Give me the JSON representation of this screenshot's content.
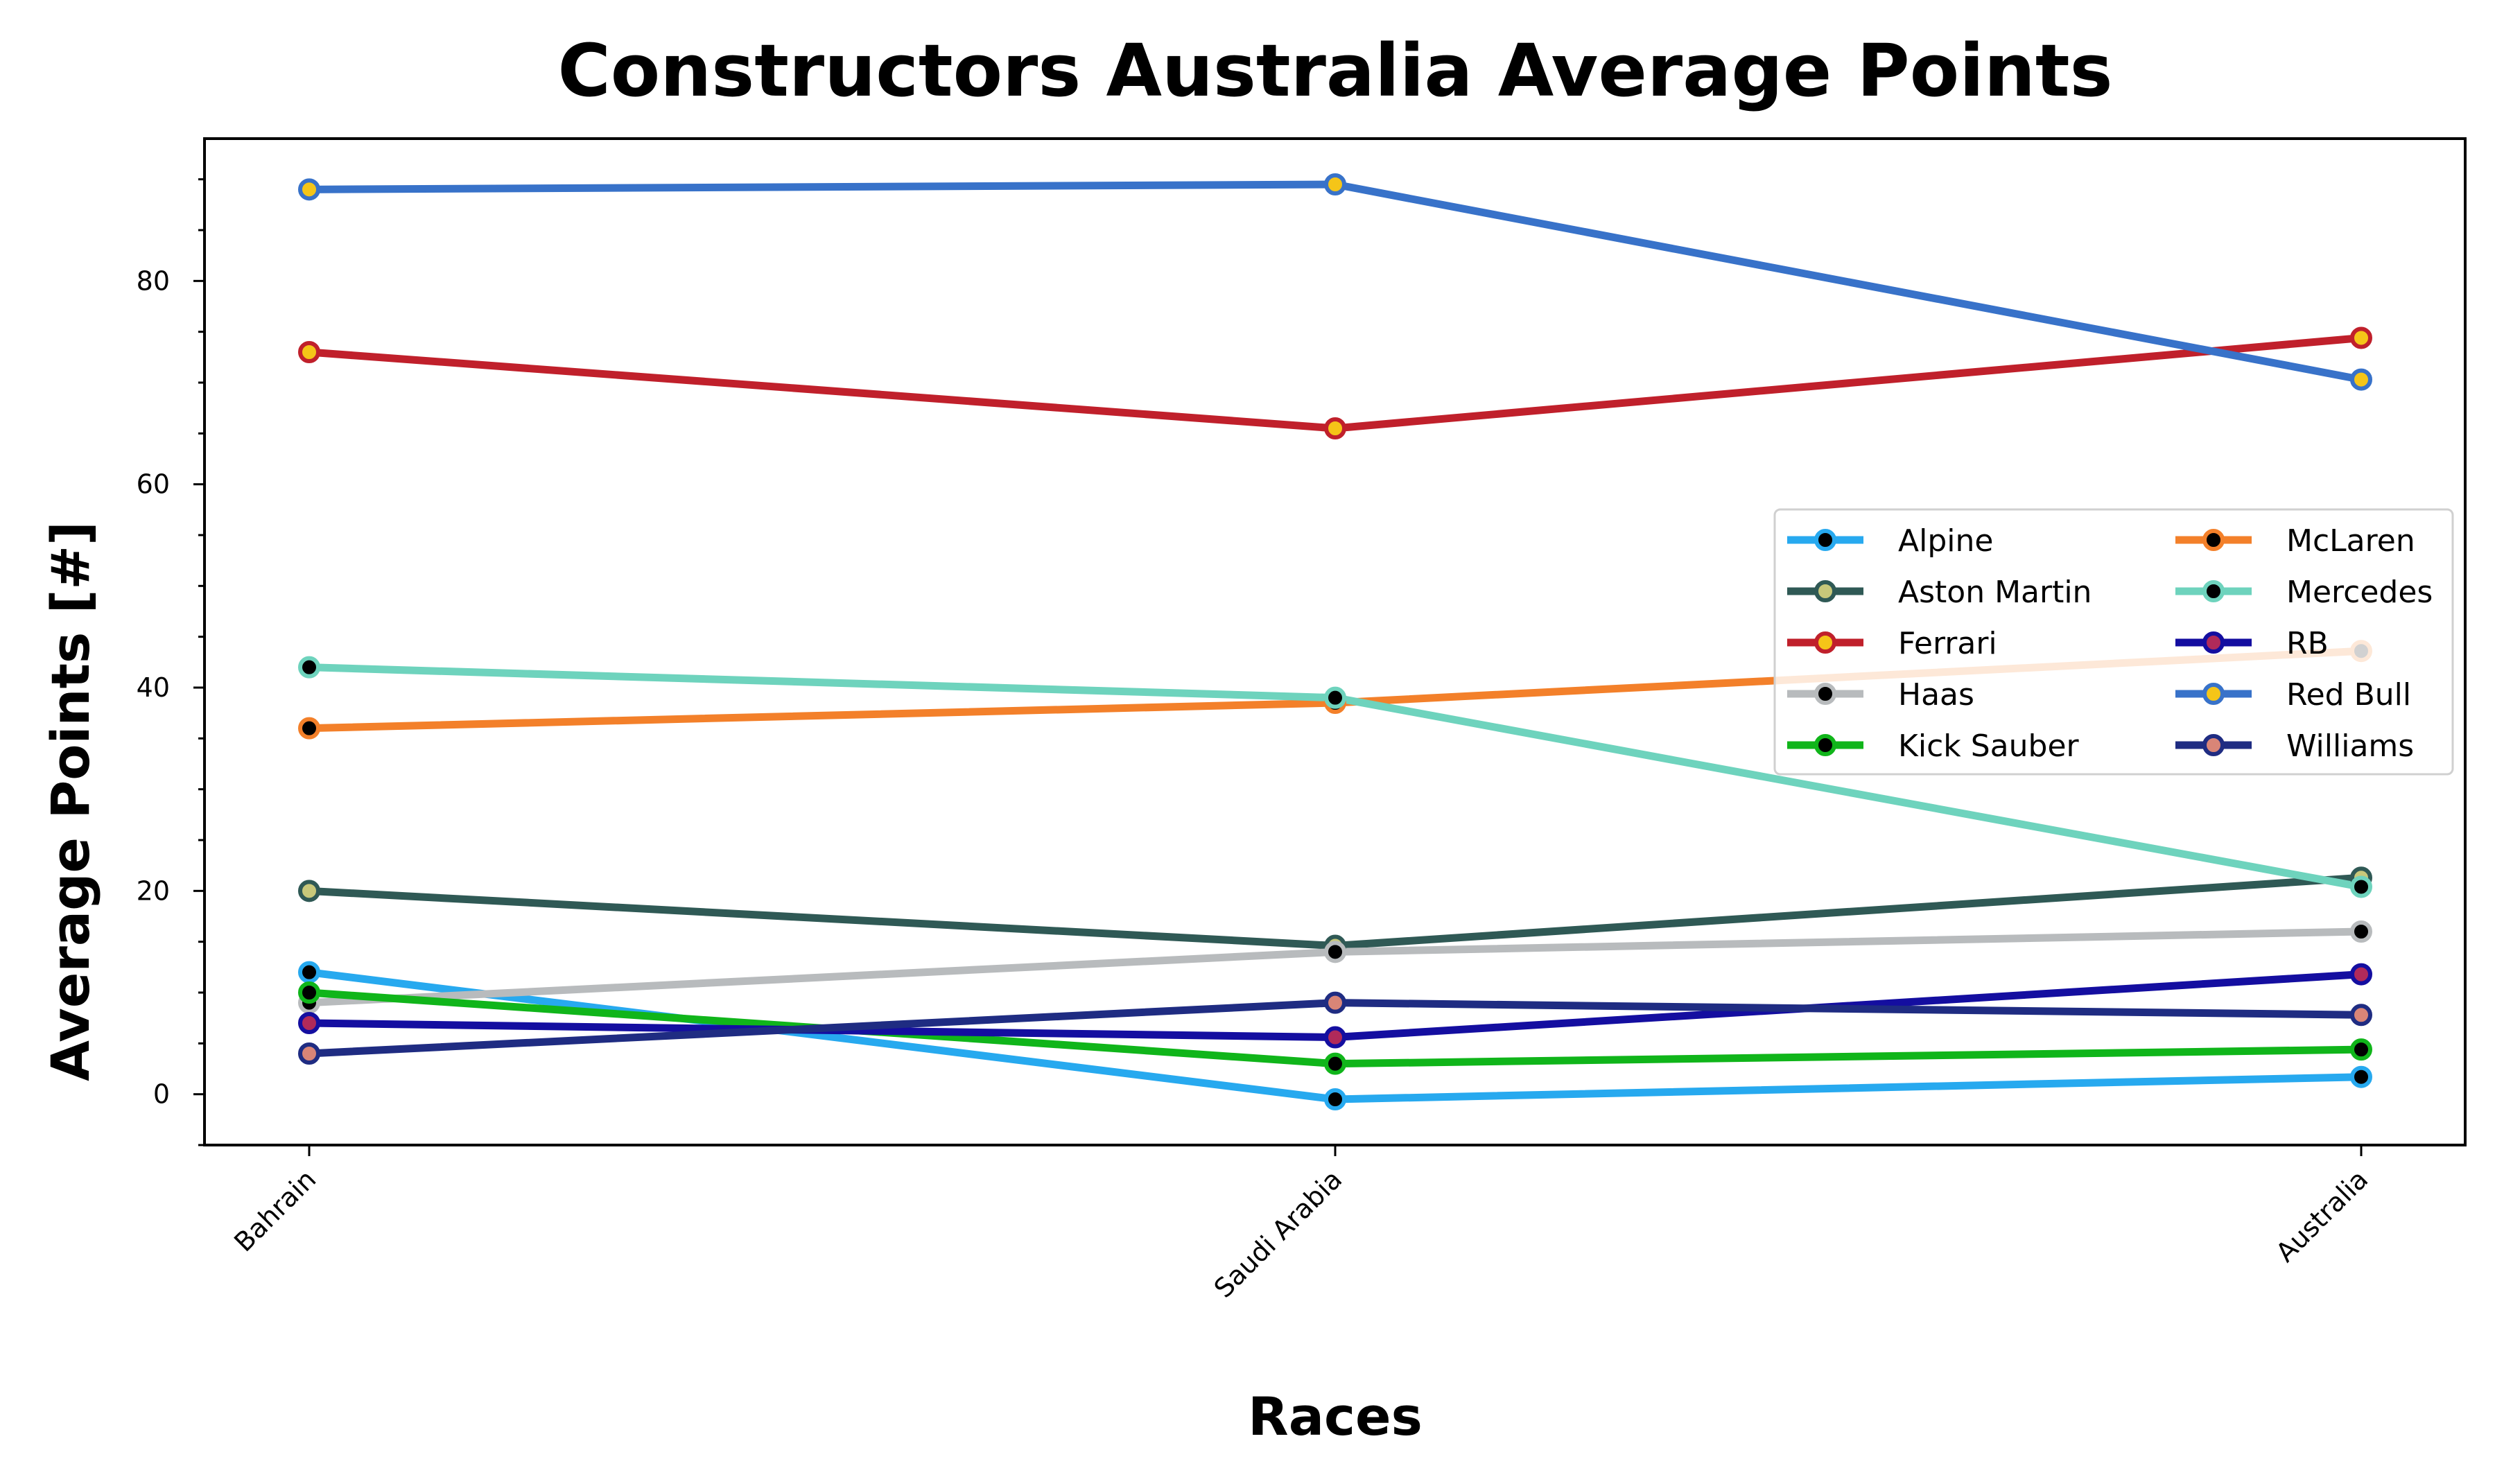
{
  "chart_data": {
    "type": "line",
    "title": "Constructors Australia Average Points",
    "xlabel": "Races",
    "ylabel": "Average Points [#]",
    "categories": [
      "Bahrain",
      "Saudi Arabia",
      "Australia"
    ],
    "ylim": [
      -5,
      94
    ],
    "yticks": [
      0,
      20,
      40,
      60,
      80
    ],
    "grid": false,
    "legend_position": "center-right",
    "legend_columns": 2,
    "series": [
      {
        "name": "Alpine",
        "values": [
          12,
          -0.5,
          1.7
        ],
        "color": "#27a9ef",
        "marker_fill": "#000000",
        "marker_edge": "#27a9ef"
      },
      {
        "name": "Aston Martin",
        "values": [
          20,
          14.6,
          21.3
        ],
        "color": "#2f5955",
        "marker_fill": "#c8c87a",
        "marker_edge": "#2f5955"
      },
      {
        "name": "Ferrari",
        "values": [
          73,
          65.5,
          74.4
        ],
        "color": "#c0202b",
        "marker_fill": "#f5c518",
        "marker_edge": "#c0202b"
      },
      {
        "name": "Haas",
        "values": [
          9,
          14,
          16
        ],
        "color": "#b8bbbd",
        "marker_fill": "#000000",
        "marker_edge": "#b8bbbd"
      },
      {
        "name": "Kick Sauber",
        "values": [
          10,
          3,
          4.4
        ],
        "color": "#10b51a",
        "marker_fill": "#000000",
        "marker_edge": "#10b51a"
      },
      {
        "name": "McLaren",
        "values": [
          36,
          38.5,
          43.6
        ],
        "color": "#f3802a",
        "marker_fill": "#000000",
        "marker_edge": "#f3802a"
      },
      {
        "name": "Mercedes",
        "values": [
          42,
          39,
          20.4
        ],
        "color": "#6ed3bd",
        "marker_fill": "#000000",
        "marker_edge": "#6ed3bd"
      },
      {
        "name": "RB",
        "values": [
          7,
          5.6,
          11.8
        ],
        "color": "#140ea0",
        "marker_fill": "#b02a5a",
        "marker_edge": "#140ea0"
      },
      {
        "name": "Red Bull",
        "values": [
          89,
          89.5,
          70.3
        ],
        "color": "#3872c9",
        "marker_fill": "#f5c518",
        "marker_edge": "#3872c9"
      },
      {
        "name": "Williams",
        "values": [
          4,
          9,
          7.8
        ],
        "color": "#1f2c82",
        "marker_fill": "#d98577",
        "marker_edge": "#1f2c82"
      }
    ]
  }
}
